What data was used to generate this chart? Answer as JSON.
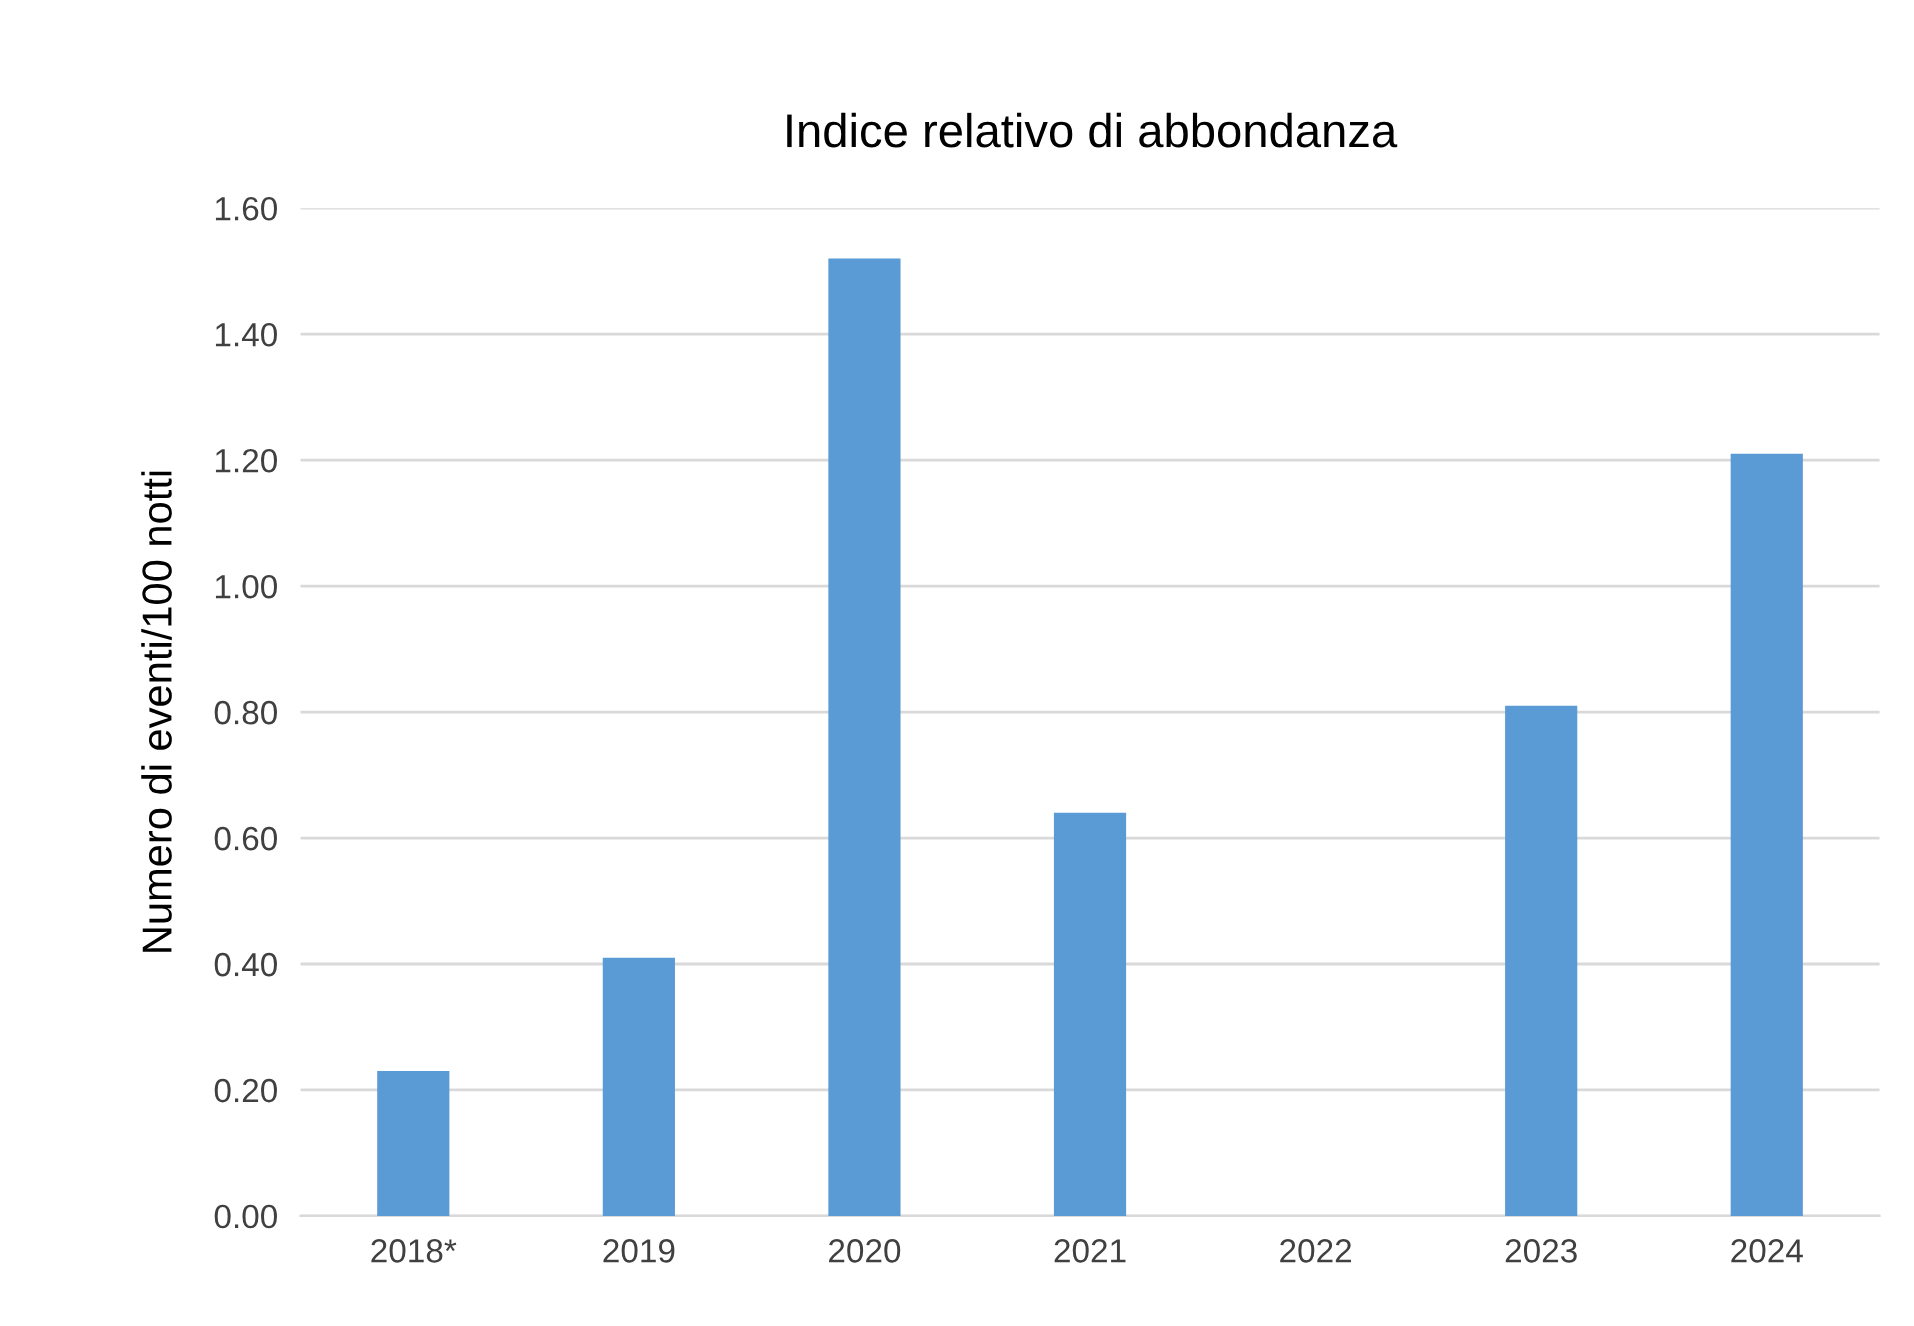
{
  "chart_data": {
    "type": "bar",
    "title": "Indice relativo di abbondanza",
    "ylabel": "Numero di eventi/100 notti",
    "categories": [
      "2018*",
      "2019",
      "2020",
      "2021",
      "2022",
      "2023",
      "2024"
    ],
    "values": [
      0.23,
      0.41,
      1.52,
      0.64,
      null,
      0.81,
      1.21
    ],
    "color": "#5b9bd5",
    "ylim": [
      0,
      1.6
    ],
    "yticks": [
      {
        "value": 0,
        "label": "0.00"
      },
      {
        "value": 0.2,
        "label": "0.20"
      },
      {
        "value": 0.4,
        "label": "0.40"
      },
      {
        "value": 0.6,
        "label": "0.60"
      },
      {
        "value": 0.8,
        "label": "0.80"
      },
      {
        "value": 1.0,
        "label": "1.00"
      },
      {
        "value": 1.2,
        "label": "1.20"
      },
      {
        "value": 1.4,
        "label": "1.40"
      },
      {
        "value": 1.6,
        "label": "1.60"
      }
    ],
    "grid": "y",
    "legend": false
  }
}
